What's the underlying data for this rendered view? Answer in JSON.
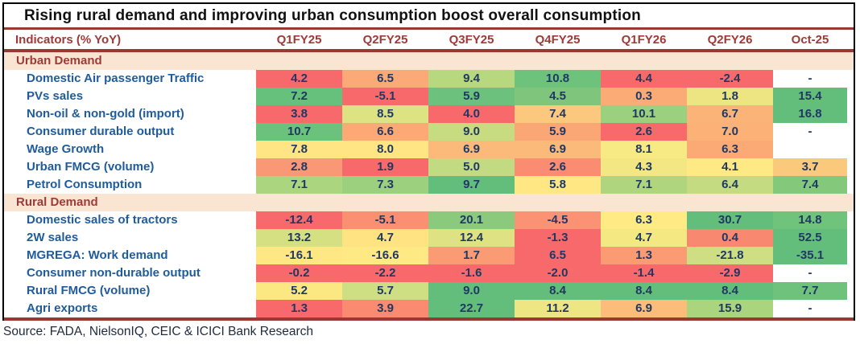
{
  "title": "Rising rural demand and improving urban consumption boost overall consumption",
  "source_note": "Source: FADA, NielsonIQ, CEIC & ICICI Bank Research",
  "colors": {
    "maroon_accent": "#9A3834",
    "header_text": "#9E3A38",
    "section_bg": "#FAE5D2",
    "label_text": "#1F5C99",
    "value_text": "#1F3864",
    "heat_red": "#F8696B",
    "heat_yellow": "#FFE884",
    "heat_green": "#63BE7B"
  },
  "chart_data": {
    "type": "heatmap",
    "title": "Rising rural demand and improving urban consumption boost overall consumption",
    "indicator_header": "Indicators (% YoY)",
    "columns": [
      "Q1FY25",
      "Q2FY25",
      "Q3FY25",
      "Q4FY25",
      "Q1FY26",
      "Q2FY26",
      "Oct-25"
    ],
    "legend_position": "none",
    "sections": [
      {
        "name": "Urban Demand",
        "rows": [
          {
            "label": "Domestic Air passenger Traffic",
            "values": [
              "4.2",
              "6.5",
              "9.4",
              "10.8",
              "4.4",
              "-2.4",
              "-"
            ],
            "cell_colors": [
              "#F8696B",
              "#FBA977",
              "#B7D87E",
              "#6EC37C",
              "#F8696B",
              "#F8696B",
              null
            ]
          },
          {
            "label": "PVs sales",
            "values": [
              "7.2",
              "-5.1",
              "5.9",
              "4.5",
              "0.3",
              "1.8",
              "15.4"
            ],
            "cell_colors": [
              "#66C17C",
              "#F8696B",
              "#6CC17C",
              "#7FC67C",
              "#FBAC76",
              "#EDE482",
              "#63BE7B"
            ]
          },
          {
            "label": "Non-oil & non-gold (import)",
            "values": [
              "3.8",
              "8.5",
              "4.0",
              "7.4",
              "10.1",
              "6.7",
              "16.8"
            ],
            "cell_colors": [
              "#F8696B",
              "#DDE283",
              "#F8696B",
              "#FCC87D",
              "#9BD07E",
              "#FCB378",
              "#63BE7B"
            ]
          },
          {
            "label": "Consumer durable output",
            "values": [
              "10.7",
              "6.6",
              "9.0",
              "5.9",
              "2.6",
              "7.0",
              "-"
            ],
            "cell_colors": [
              "#6CC27D",
              "#FCA976",
              "#C7DC81",
              "#FBA675",
              "#F8696B",
              "#FCB177",
              null
            ]
          },
          {
            "label": "Wage Growth",
            "values": [
              "7.8",
              "8.0",
              "6.9",
              "6.9",
              "8.1",
              "6.3",
              ""
            ],
            "cell_colors": [
              "#FFE584",
              "#FFE584",
              "#FCBA7A",
              "#FCBA7A",
              "#F7EA84",
              "#FBAA76",
              null
            ]
          },
          {
            "label": "Urban FMCG (volume)",
            "values": [
              "2.8",
              "1.9",
              "5.0",
              "2.6",
              "4.3",
              "4.1",
              "3.7"
            ],
            "cell_colors": [
              "#FA9876",
              "#F8696B",
              "#C2DA81",
              "#F98C71",
              "#F2E783",
              "#FFE984",
              "#FBC97C"
            ]
          },
          {
            "label": "Petrol Consumption",
            "values": [
              "7.1",
              "7.3",
              "9.7",
              "5.8",
              "7.1",
              "6.4",
              "7.4"
            ],
            "cell_colors": [
              "#ABD57F",
              "#9DD07E",
              "#63BE7B",
              "#FFE884",
              "#AFD67F",
              "#C4DB81",
              "#84C87C"
            ]
          }
        ]
      },
      {
        "name": "Rural Demand",
        "rows": [
          {
            "label": "Domestic sales of tractors",
            "values": [
              "-12.4",
              "-5.1",
              "20.1",
              "-4.5",
              "6.3",
              "30.7",
              "14.8"
            ],
            "cell_colors": [
              "#F8696B",
              "#FA8F72",
              "#8BCA7D",
              "#FA9273",
              "#FFEA84",
              "#63BE7B",
              "#70C37B"
            ]
          },
          {
            "label": "2W sales",
            "values": [
              "13.2",
              "4.7",
              "12.4",
              "-1.3",
              "4.7",
              "0.4",
              "52.5"
            ],
            "cell_colors": [
              "#D5E082",
              "#FFE383",
              "#DFE283",
              "#F8696B",
              "#F4E883",
              "#F98870",
              "#63BE7B"
            ]
          },
          {
            "label": "MGREGA: Work demand",
            "values": [
              "-16.1",
              "-16.6",
              "1.7",
              "6.5",
              "1.3",
              "-21.8",
              "-35.1"
            ],
            "cell_colors": [
              "#FFE784",
              "#FFE984",
              "#FA9B74",
              "#F8696B",
              "#FA9B74",
              "#CFDE82",
              "#63BE7B"
            ]
          },
          {
            "label": "Consumer non-durable output",
            "values": [
              "-0.2",
              "-2.2",
              "-1.6",
              "-2.0",
              "-1.4",
              "-2.9",
              "-"
            ],
            "cell_colors": [
              "#F8696B",
              "#F8696B",
              "#F8696B",
              "#F8696B",
              "#F8696B",
              "#F8696B",
              null
            ]
          },
          {
            "label": "Rural FMCG (volume)",
            "values": [
              "5.2",
              "5.7",
              "9.0",
              "8.4",
              "8.4",
              "8.4",
              "7.7"
            ],
            "cell_colors": [
              "#FBE883",
              "#CEDE82",
              "#63BE7B",
              "#63BE7B",
              "#63BE7B",
              "#63BE7B",
              "#6FC27B"
            ]
          },
          {
            "label": "Agri exports",
            "values": [
              "1.3",
              "3.9",
              "22.7",
              "11.2",
              "6.9",
              "15.9",
              "-"
            ],
            "cell_colors": [
              "#F8696B",
              "#FA8B71",
              "#63BE7B",
              "#EEE683",
              "#FCBD7B",
              "#ABD47F",
              null
            ]
          }
        ]
      }
    ],
    "source": "FADA, NielsonIQ, CEIC & ICICI Bank Research"
  }
}
